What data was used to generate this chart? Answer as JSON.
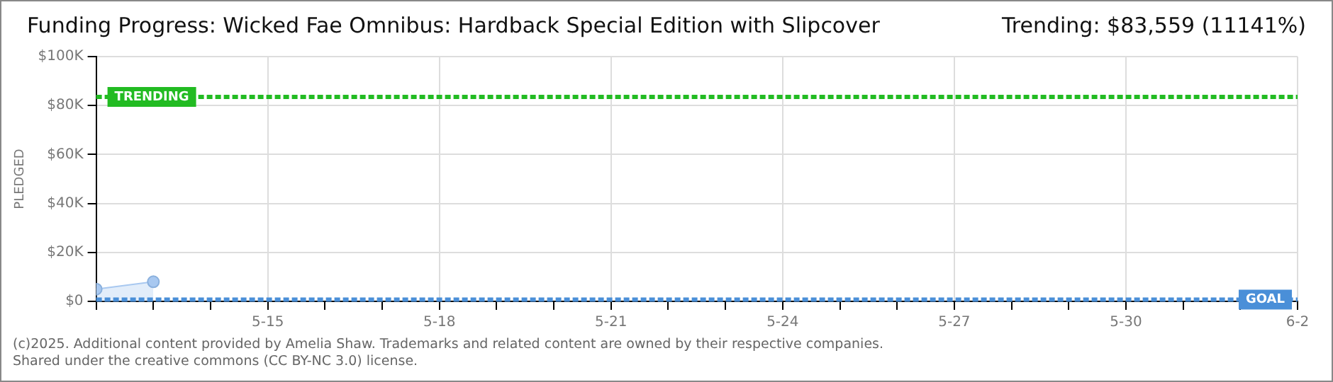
{
  "chart_data": {
    "type": "area",
    "title": "Funding Progress: Wicked Fae Omnibus: Hardback Special Edition with Slipcover",
    "subtitle": "Trending:  $83,559 (11141%)",
    "ylabel": "PLEDGED",
    "x": [
      "2025-05-12",
      "2025-05-13"
    ],
    "series": [
      {
        "color": "#a8c8f0",
        "values": [
          5000,
          8000
        ]
      }
    ],
    "xlim": [
      "2025-05-12",
      "2025-06-02"
    ],
    "xticks": [
      {
        "value": "2025-05-12",
        "label": null
      },
      {
        "value": "2025-05-13",
        "label": null
      },
      {
        "value": "2025-05-14",
        "label": null
      },
      {
        "value": "2025-05-15",
        "label": "5-15"
      },
      {
        "value": "2025-05-16",
        "label": null
      },
      {
        "value": "2025-05-17",
        "label": null
      },
      {
        "value": "2025-05-18",
        "label": "5-18"
      },
      {
        "value": "2025-05-19",
        "label": null
      },
      {
        "value": "2025-05-20",
        "label": null
      },
      {
        "value": "2025-05-21",
        "label": "5-21"
      },
      {
        "value": "2025-05-22",
        "label": null
      },
      {
        "value": "2025-05-23",
        "label": null
      },
      {
        "value": "2025-05-24",
        "label": "5-24"
      },
      {
        "value": "2025-05-25",
        "label": null
      },
      {
        "value": "2025-05-26",
        "label": null
      },
      {
        "value": "2025-05-27",
        "label": "5-27"
      },
      {
        "value": "2025-05-28",
        "label": null
      },
      {
        "value": "2025-05-29",
        "label": null
      },
      {
        "value": "2025-05-30",
        "label": "5-30"
      },
      {
        "value": "2025-05-31",
        "label": null
      },
      {
        "value": "2025-06-01",
        "label": null
      },
      {
        "value": "2025-06-02",
        "label": "6-2"
      }
    ],
    "ylim": [
      0,
      100000
    ],
    "yticks": [
      {
        "value": 0,
        "label": "$0"
      },
      {
        "value": 20000,
        "label": "$20K"
      },
      {
        "value": 40000,
        "label": "$40K"
      },
      {
        "value": 60000,
        "label": "$60K"
      },
      {
        "value": 80000,
        "label": "$80K"
      },
      {
        "value": 100000,
        "label": "$100K"
      }
    ],
    "grid": true,
    "marker": "circle",
    "legend": false,
    "ref_lines": [
      {
        "axis": "y",
        "value": 83559,
        "label": "TRENDING",
        "color": "#22bb22",
        "line_style": "dashed"
      },
      {
        "axis": "y",
        "value": 750,
        "label": "GOAL",
        "color": "#4a8fd8",
        "line_style": "dashed"
      }
    ],
    "annotations": [
      "(c)2025. Additional content provided by Amelia Shaw. Trademarks and related content are owned by their respective companies.",
      "Shared under the creative commons (CC BY-NC 3.0) license."
    ]
  }
}
